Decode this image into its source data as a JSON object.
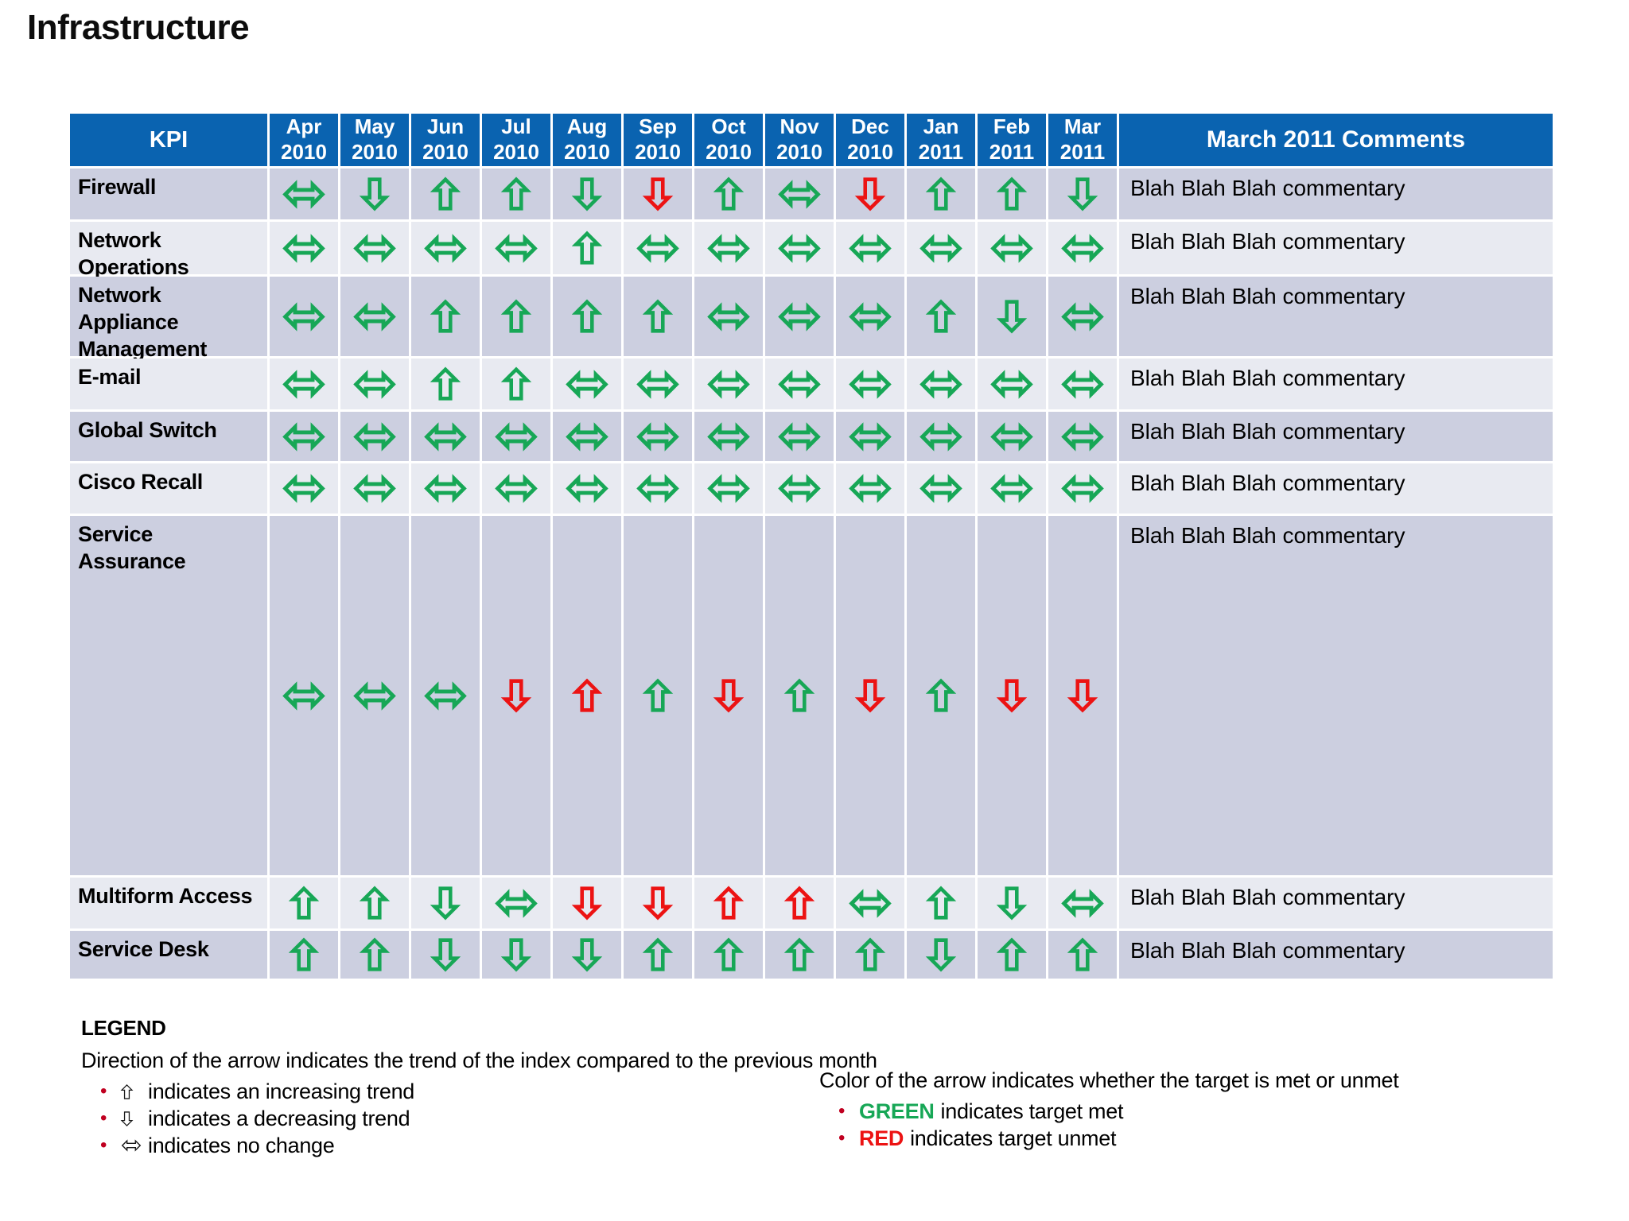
{
  "page": {
    "title": "Infrastructure"
  },
  "colors": {
    "header_bg": "#0a63b0",
    "header_text": "#ffffff",
    "row_dark": "#cccfe0",
    "row_light": "#e8eaf1",
    "green": "#17a756",
    "red": "#ec1313",
    "legend_bullet": "#c00020",
    "legend_glyph": "#1a1a1a"
  },
  "icons": {
    "up": "trend-up-arrow-icon",
    "down": "trend-down-arrow-icon",
    "lr": "trend-no-change-arrow-icon"
  },
  "table": {
    "kpi_header": "KPI",
    "comments_header": "March 2011 Comments",
    "months": [
      [
        "Apr",
        "2010"
      ],
      [
        "May",
        "2010"
      ],
      [
        "Jun",
        "2010"
      ],
      [
        "Jul",
        "2010"
      ],
      [
        "Aug",
        "2010"
      ],
      [
        "Sep",
        "2010"
      ],
      [
        "Oct",
        "2010"
      ],
      [
        "Nov",
        "2010"
      ],
      [
        "Dec",
        "2010"
      ],
      [
        "Jan",
        "2011"
      ],
      [
        "Feb",
        "2011"
      ],
      [
        "Mar",
        "2011"
      ]
    ],
    "rows": [
      {
        "kpi": "Firewall",
        "trends": [
          "lr-g",
          "down-g",
          "up-g",
          "up-g",
          "down-g",
          "down-r",
          "up-g",
          "lr-g",
          "down-r",
          "up-g",
          "up-g",
          "down-g"
        ],
        "comment": "Blah Blah Blah commentary"
      },
      {
        "kpi": "Network Operations",
        "trends": [
          "lr-g",
          "lr-g",
          "lr-g",
          "lr-g",
          "up-g",
          "lr-g",
          "lr-g",
          "lr-g",
          "lr-g",
          "lr-g",
          "lr-g",
          "lr-g"
        ],
        "comment": "Blah Blah Blah commentary"
      },
      {
        "kpi": "Network Appliance Management",
        "trends": [
          "lr-g",
          "lr-g",
          "up-g",
          "up-g",
          "up-g",
          "up-g",
          "lr-g",
          "lr-g",
          "lr-g",
          "up-g",
          "down-g",
          "lr-g"
        ],
        "comment": "Blah Blah Blah commentary"
      },
      {
        "kpi": "E-mail",
        "trends": [
          "lr-g",
          "lr-g",
          "up-g",
          "up-g",
          "lr-g",
          "lr-g",
          "lr-g",
          "lr-g",
          "lr-g",
          "lr-g",
          "lr-g",
          "lr-g"
        ],
        "comment": "Blah Blah Blah commentary"
      },
      {
        "kpi": "Global Switch",
        "trends": [
          "lr-g",
          "lr-g",
          "lr-g",
          "lr-g",
          "lr-g",
          "lr-g",
          "lr-g",
          "lr-g",
          "lr-g",
          "lr-g",
          "lr-g",
          "lr-g"
        ],
        "comment": "Blah Blah Blah commentary"
      },
      {
        "kpi": "Cisco Recall",
        "trends": [
          "lr-g",
          "lr-g",
          "lr-g",
          "lr-g",
          "lr-g",
          "lr-g",
          "lr-g",
          "lr-g",
          "lr-g",
          "lr-g",
          "lr-g",
          "lr-g"
        ],
        "comment": "Blah Blah Blah commentary"
      },
      {
        "kpi": "Service Assurance",
        "trends": [
          "lr-g",
          "lr-g",
          "lr-g",
          "down-r",
          "up-r",
          "up-g",
          "down-r",
          "up-g",
          "down-r",
          "up-g",
          "down-r",
          "down-r"
        ],
        "comment": "Blah Blah Blah commentary"
      },
      {
        "kpi": "Multiform Access",
        "trends": [
          "up-g",
          "up-g",
          "down-g",
          "lr-g",
          "down-r",
          "down-r",
          "up-r",
          "up-r",
          "lr-g",
          "up-g",
          "down-g",
          "lr-g"
        ],
        "comment": "Blah Blah Blah commentary"
      },
      {
        "kpi": "Service Desk",
        "trends": [
          "up-g",
          "up-g",
          "down-g",
          "down-g",
          "down-g",
          "up-g",
          "up-g",
          "up-g",
          "up-g",
          "down-g",
          "up-g",
          "up-g"
        ],
        "comment": "Blah Blah Blah commentary"
      }
    ]
  },
  "legend": {
    "title": "LEGEND",
    "direction_intro": "Direction of the arrow indicates the trend of the index compared to the previous month",
    "direction_items": [
      {
        "arrow": "up",
        "text": "indicates an increasing trend"
      },
      {
        "arrow": "down",
        "text": "indicates a decreasing trend"
      },
      {
        "arrow": "lr",
        "text": "indicates no change"
      }
    ],
    "color_intro": "Color of the arrow indicates whether the  target is met or unmet",
    "color_items": [
      {
        "word": "GREEN",
        "word_color": "#17a756",
        "text": "indicates target met"
      },
      {
        "word": "RED",
        "word_color": "#ec1313",
        "text": "indicates target unmet"
      }
    ]
  }
}
